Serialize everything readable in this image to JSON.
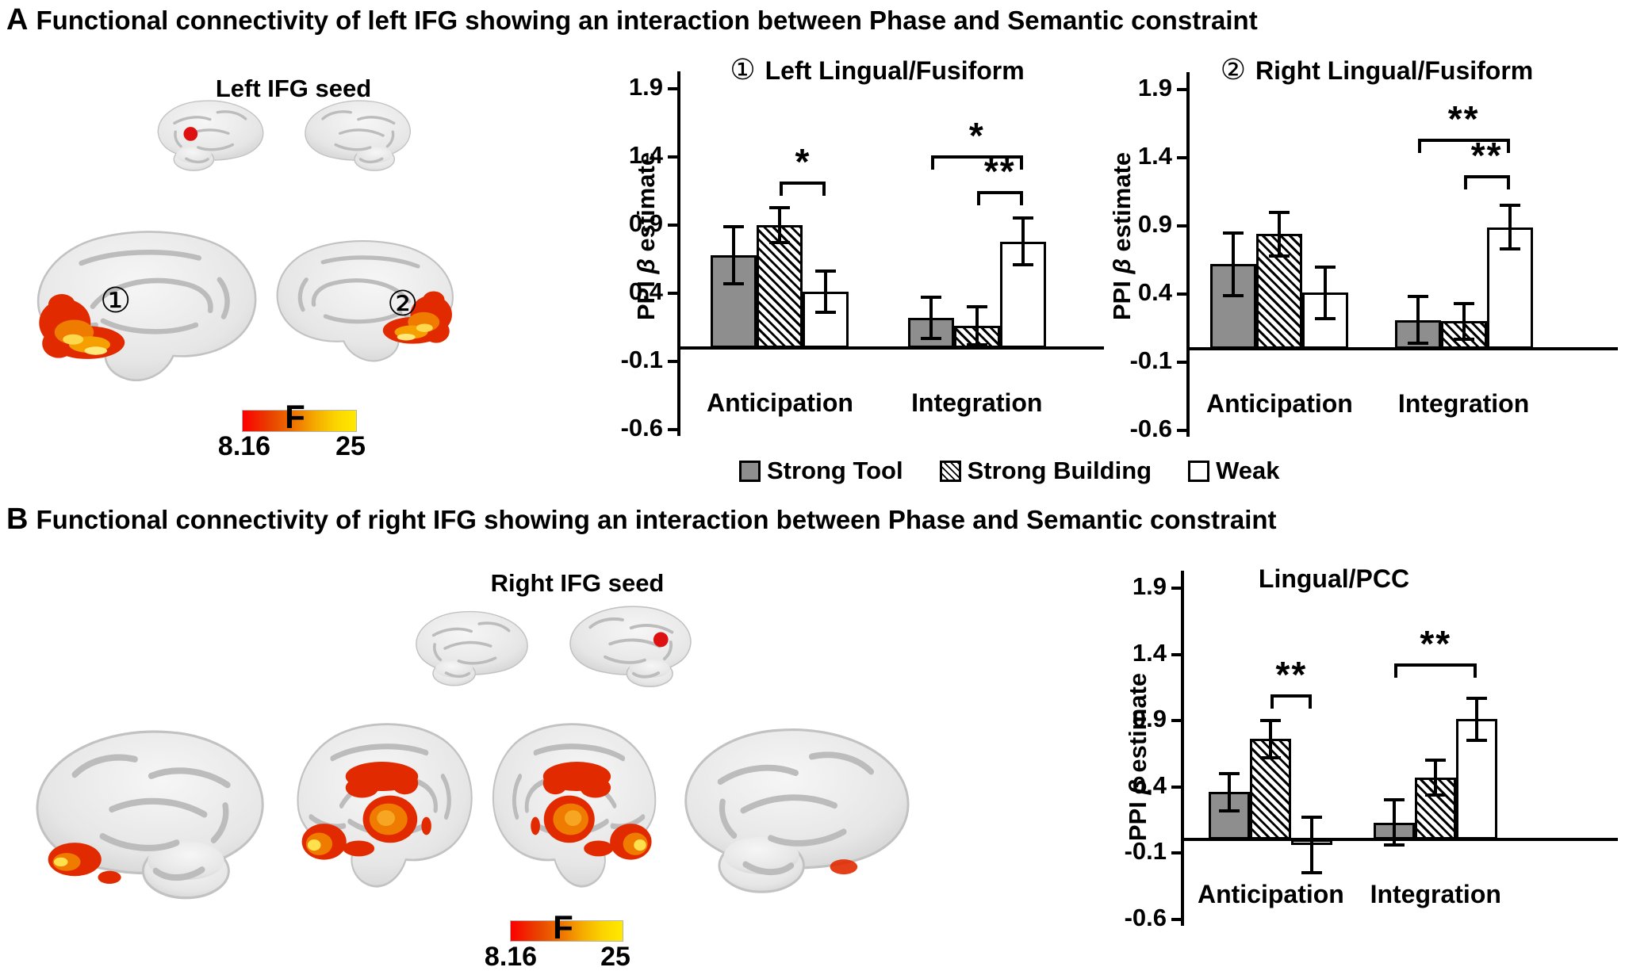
{
  "panels": {
    "a": {
      "label": "A",
      "title": "Functional connectivity of left IFG showing an interaction between Phase and Semantic constraint",
      "seed_label": "Left IFG seed",
      "marker_1": "①",
      "marker_2": "②",
      "colorbar": {
        "label": "F",
        "min": "8.16",
        "max": "25",
        "gradient_colors": [
          "#fb0000",
          "#ef7b00",
          "#ffe900"
        ]
      }
    },
    "b": {
      "label": "B",
      "title": "Functional connectivity of right IFG showing an interaction between Phase and Semantic constraint",
      "seed_label": "Right IFG seed",
      "colorbar": {
        "label": "F",
        "min": "8.16",
        "max": "25",
        "gradient_colors": [
          "#fb0000",
          "#ef7b00",
          "#ffe900"
        ]
      }
    }
  },
  "legend": {
    "items": [
      {
        "label": "Strong Tool",
        "pattern": "gray",
        "color": "#8e8e8e"
      },
      {
        "label": "Strong Building",
        "pattern": "hatched",
        "color": "#ffffff"
      },
      {
        "label": "Weak",
        "pattern": "white",
        "color": "#ffffff"
      }
    ]
  },
  "chart_data": [
    {
      "type": "bar",
      "number": "①",
      "title": "Left Lingual/Fusiform",
      "ylabel": "PPI β estimate",
      "yticks": [
        1.9,
        1.4,
        0.9,
        0.4,
        -0.1,
        -0.6
      ],
      "ylim": [
        -0.6,
        1.9
      ],
      "grid": false,
      "categories": [
        "Anticipation",
        "Integration"
      ],
      "series": [
        {
          "name": "Strong Tool",
          "values": [
            0.68,
            0.22
          ],
          "errors": [
            0.21,
            0.15
          ]
        },
        {
          "name": "Strong Building",
          "values": [
            0.9,
            0.16
          ],
          "errors": [
            0.13,
            0.14
          ]
        },
        {
          "name": "Weak",
          "values": [
            0.41,
            0.78
          ],
          "errors": [
            0.15,
            0.17
          ]
        }
      ],
      "significance": [
        {
          "category": "Anticipation",
          "from": "Strong Building",
          "to": "Weak",
          "label": "*",
          "height": 1.22
        },
        {
          "category": "Integration",
          "from": "Strong Tool",
          "to": "Weak",
          "label": "*",
          "height": 1.41
        },
        {
          "category": "Integration",
          "from": "Strong Building",
          "to": "Weak",
          "label": "**",
          "height": 1.15
        }
      ]
    },
    {
      "type": "bar",
      "number": "②",
      "title": "Right Lingual/Fusiform",
      "ylabel": "PPI β estimate",
      "yticks": [
        1.9,
        1.4,
        0.9,
        0.4,
        -0.1,
        -0.6
      ],
      "ylim": [
        -0.6,
        1.9
      ],
      "grid": false,
      "categories": [
        "Anticipation",
        "Integration"
      ],
      "series": [
        {
          "name": "Strong Tool",
          "values": [
            0.62,
            0.21
          ],
          "errors": [
            0.23,
            0.17
          ]
        },
        {
          "name": "Strong Building",
          "values": [
            0.84,
            0.2
          ],
          "errors": [
            0.16,
            0.13
          ]
        },
        {
          "name": "Weak",
          "values": [
            0.41,
            0.89
          ],
          "errors": [
            0.19,
            0.16
          ]
        }
      ],
      "significance": [
        {
          "category": "Integration",
          "from": "Strong Tool",
          "to": "Weak",
          "label": "**",
          "height": 1.54
        },
        {
          "category": "Integration",
          "from": "Strong Building",
          "to": "Weak",
          "label": "**",
          "height": 1.27
        }
      ]
    },
    {
      "type": "bar",
      "number": "",
      "title": "Lingual/PCC",
      "ylabel": "PPI β estimate",
      "yticks": [
        1.9,
        1.4,
        0.9,
        0.4,
        -0.1,
        -0.6
      ],
      "ylim": [
        -0.6,
        1.9
      ],
      "grid": false,
      "categories": [
        "Anticipation",
        "Integration"
      ],
      "series": [
        {
          "name": "Strong Tool",
          "values": [
            0.36,
            0.13
          ],
          "errors": [
            0.14,
            0.17
          ]
        },
        {
          "name": "Strong Building",
          "values": [
            0.76,
            0.47
          ],
          "errors": [
            0.14,
            0.13
          ]
        },
        {
          "name": "Weak",
          "values": [
            -0.04,
            0.91
          ],
          "errors": [
            0.21,
            0.16
          ]
        }
      ],
      "significance": [
        {
          "category": "Anticipation",
          "from": "Strong Building",
          "to": "Weak",
          "label": "**",
          "height": 1.1
        },
        {
          "category": "Integration",
          "from": "Strong Tool",
          "to": "Weak",
          "label": "**",
          "height": 1.33
        }
      ]
    }
  ]
}
